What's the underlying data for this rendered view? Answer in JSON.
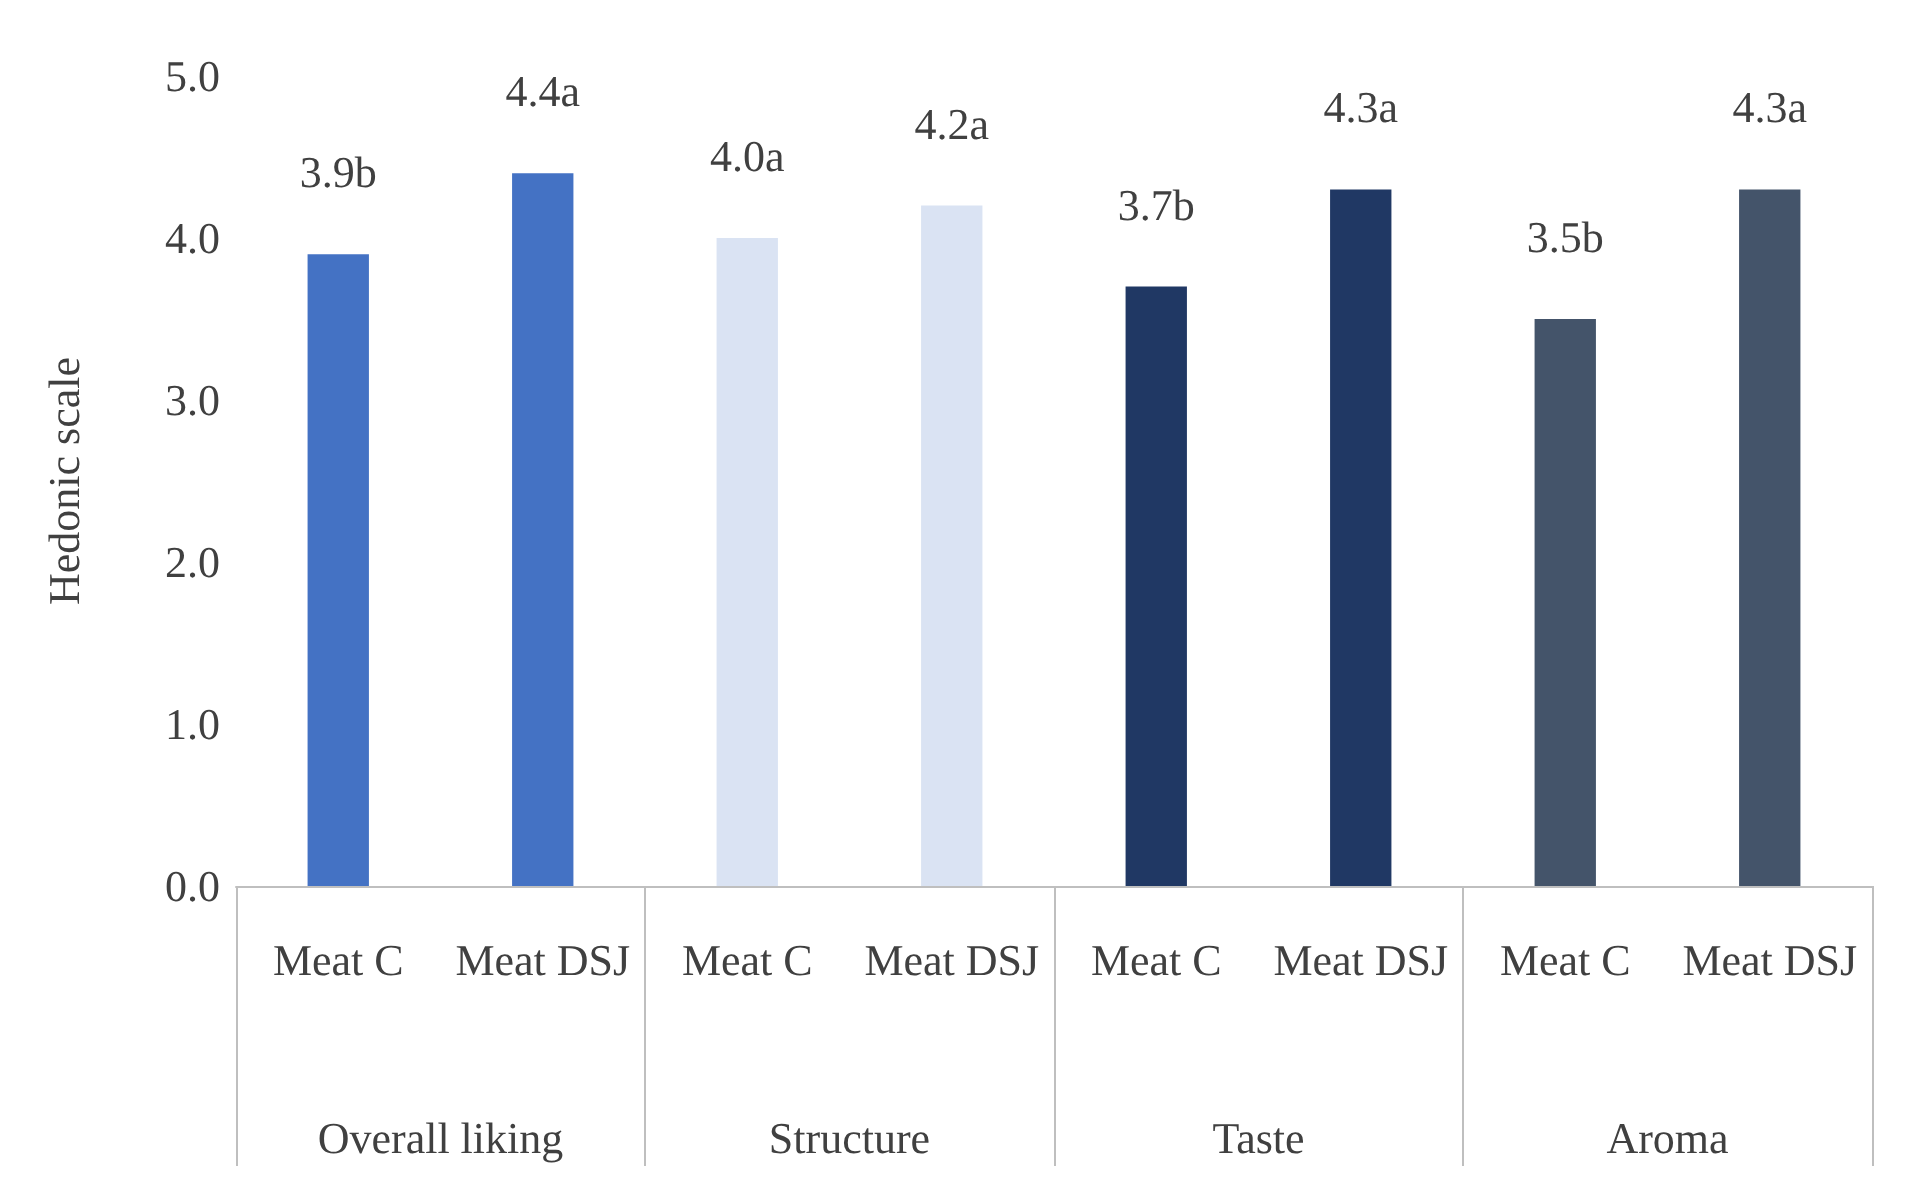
{
  "chart_data": {
    "type": "bar",
    "ylabel": "Hedonic scale",
    "categories": [
      "Overall liking",
      "Structure",
      "Taste",
      "Aroma"
    ],
    "series": [
      {
        "name": "Meat C",
        "colors": [
          "#4472c4",
          "#dae3f3",
          "#203864",
          "#44546a"
        ],
        "values": [
          3.9,
          4.0,
          3.7,
          3.5
        ],
        "value_labels": [
          "3.9b",
          "4.0a",
          "3.7b",
          "3.5b"
        ]
      },
      {
        "name": "Meat DSJ",
        "colors": [
          "#4472c4",
          "#dae3f3",
          "#203864",
          "#44546a"
        ],
        "values": [
          4.4,
          4.2,
          4.3,
          4.3
        ],
        "value_labels": [
          "4.4a",
          "4.2a",
          "4.3a",
          "4.3a"
        ]
      }
    ],
    "ylim": [
      0,
      5
    ],
    "yticks": [
      {
        "value": 0,
        "label": "0.0"
      },
      {
        "value": 1,
        "label": "1.0"
      },
      {
        "value": 2,
        "label": "2.0"
      },
      {
        "value": 3,
        "label": "3.0"
      },
      {
        "value": 4,
        "label": "4.0"
      },
      {
        "value": 5,
        "label": "5.0"
      }
    ],
    "grid": false,
    "legend": false
  }
}
